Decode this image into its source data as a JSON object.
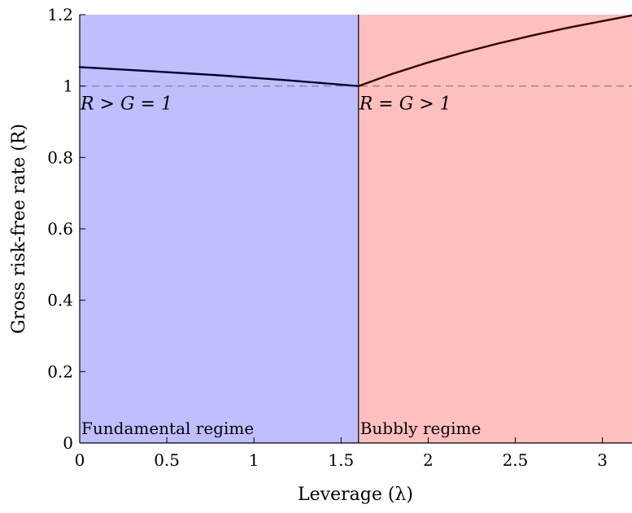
{
  "chart_data": {
    "type": "line",
    "xlabel": "Leverage (λ)",
    "ylabel": "Gross risk-free rate (R)",
    "xlim": [
      0,
      3.17
    ],
    "ylim": [
      0,
      1.2
    ],
    "xticks": [
      0,
      0.5,
      1,
      1.5,
      2,
      2.5,
      3
    ],
    "xtick_labels": [
      "0",
      "0.5",
      "1",
      "1.5",
      "2",
      "2.5",
      "3"
    ],
    "yticks": [
      0,
      0.2,
      0.4,
      0.6,
      0.8,
      1,
      1.2
    ],
    "ytick_labels": [
      "0",
      "0.2",
      "0.4",
      "0.6",
      "0.8",
      "1",
      "1.2"
    ],
    "threshold_x": 1.6,
    "reference_line_y": 1,
    "regions": [
      {
        "name": "fundamental",
        "label": "Fundamental regime",
        "x_from": 0,
        "x_to": 1.6,
        "color": "#bfbfff"
      },
      {
        "name": "bubbly",
        "label": "Bubbly regime",
        "x_from": 1.6,
        "x_to": 3.17,
        "color": "#ffbfbf"
      }
    ],
    "annotations": [
      {
        "text": "R > G = 1",
        "x": 0,
        "y": 1
      },
      {
        "text": "R = G > 1",
        "x": 1.6,
        "y": 1
      }
    ],
    "series": [
      {
        "color": "#000033",
        "x": [
          0,
          0.4,
          0.8,
          1.2,
          1.6
        ],
        "y": [
          1.053,
          1.042,
          1.03,
          1.016,
          1.0
        ]
      },
      {
        "color": "#330000",
        "x": [
          1.6,
          1.8,
          2.0,
          2.2,
          2.4,
          2.6,
          2.8,
          3.0,
          3.17
        ],
        "y": [
          1.0,
          1.035,
          1.066,
          1.094,
          1.119,
          1.142,
          1.163,
          1.182,
          1.198
        ]
      }
    ]
  }
}
